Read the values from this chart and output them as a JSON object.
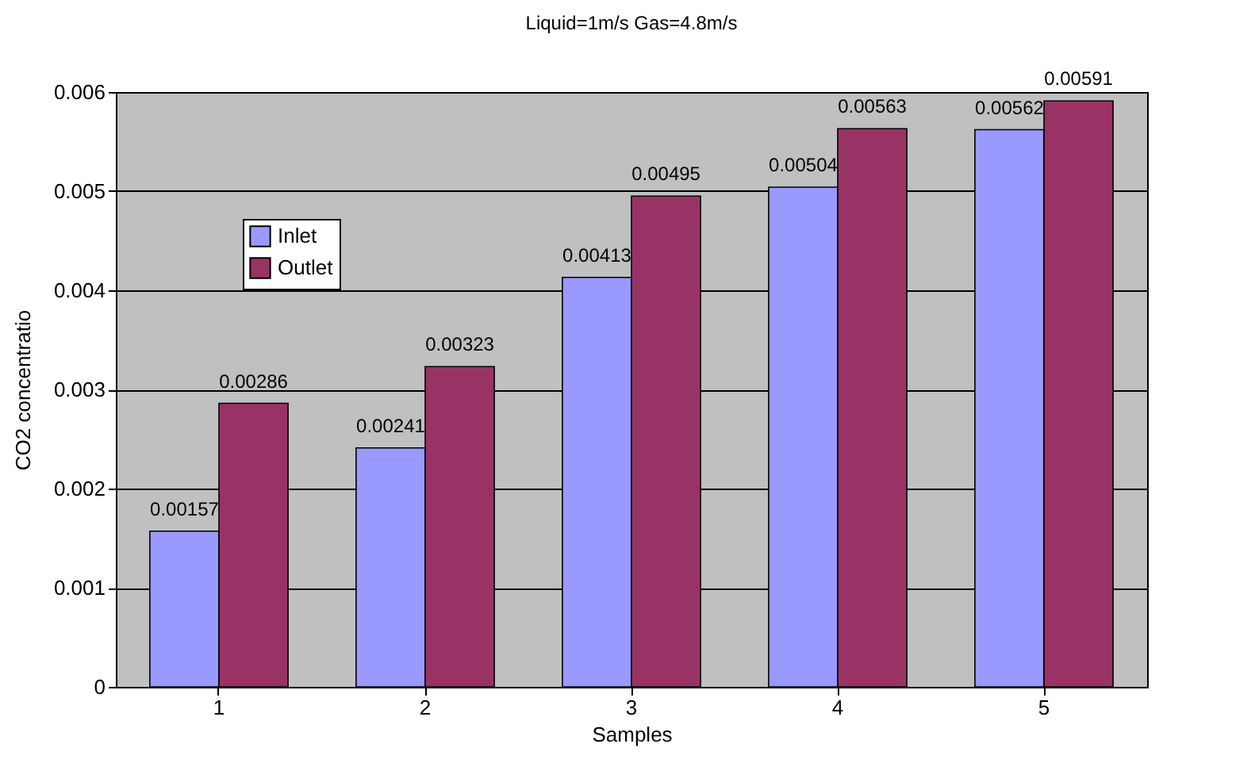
{
  "chart_data": {
    "type": "bar",
    "title": "Liquid=1m/s  Gas=4.8m/s",
    "xlabel": "Samples",
    "ylabel": "CO2 concentratio",
    "categories": [
      "1",
      "2",
      "3",
      "4",
      "5"
    ],
    "series": [
      {
        "name": "Inlet",
        "color": "#9999ff",
        "values": [
          0.00157,
          0.00241,
          0.00413,
          0.00504,
          0.00562
        ]
      },
      {
        "name": "Outlet",
        "color": "#993366",
        "values": [
          0.00286,
          0.00323,
          0.00495,
          0.00563,
          0.00591
        ]
      }
    ],
    "ylim": [
      0,
      0.006
    ],
    "yticks": [
      0,
      0.001,
      0.002,
      0.003,
      0.004,
      0.005,
      0.006
    ],
    "grid": "y",
    "legend": "top left",
    "data_labels": true
  }
}
